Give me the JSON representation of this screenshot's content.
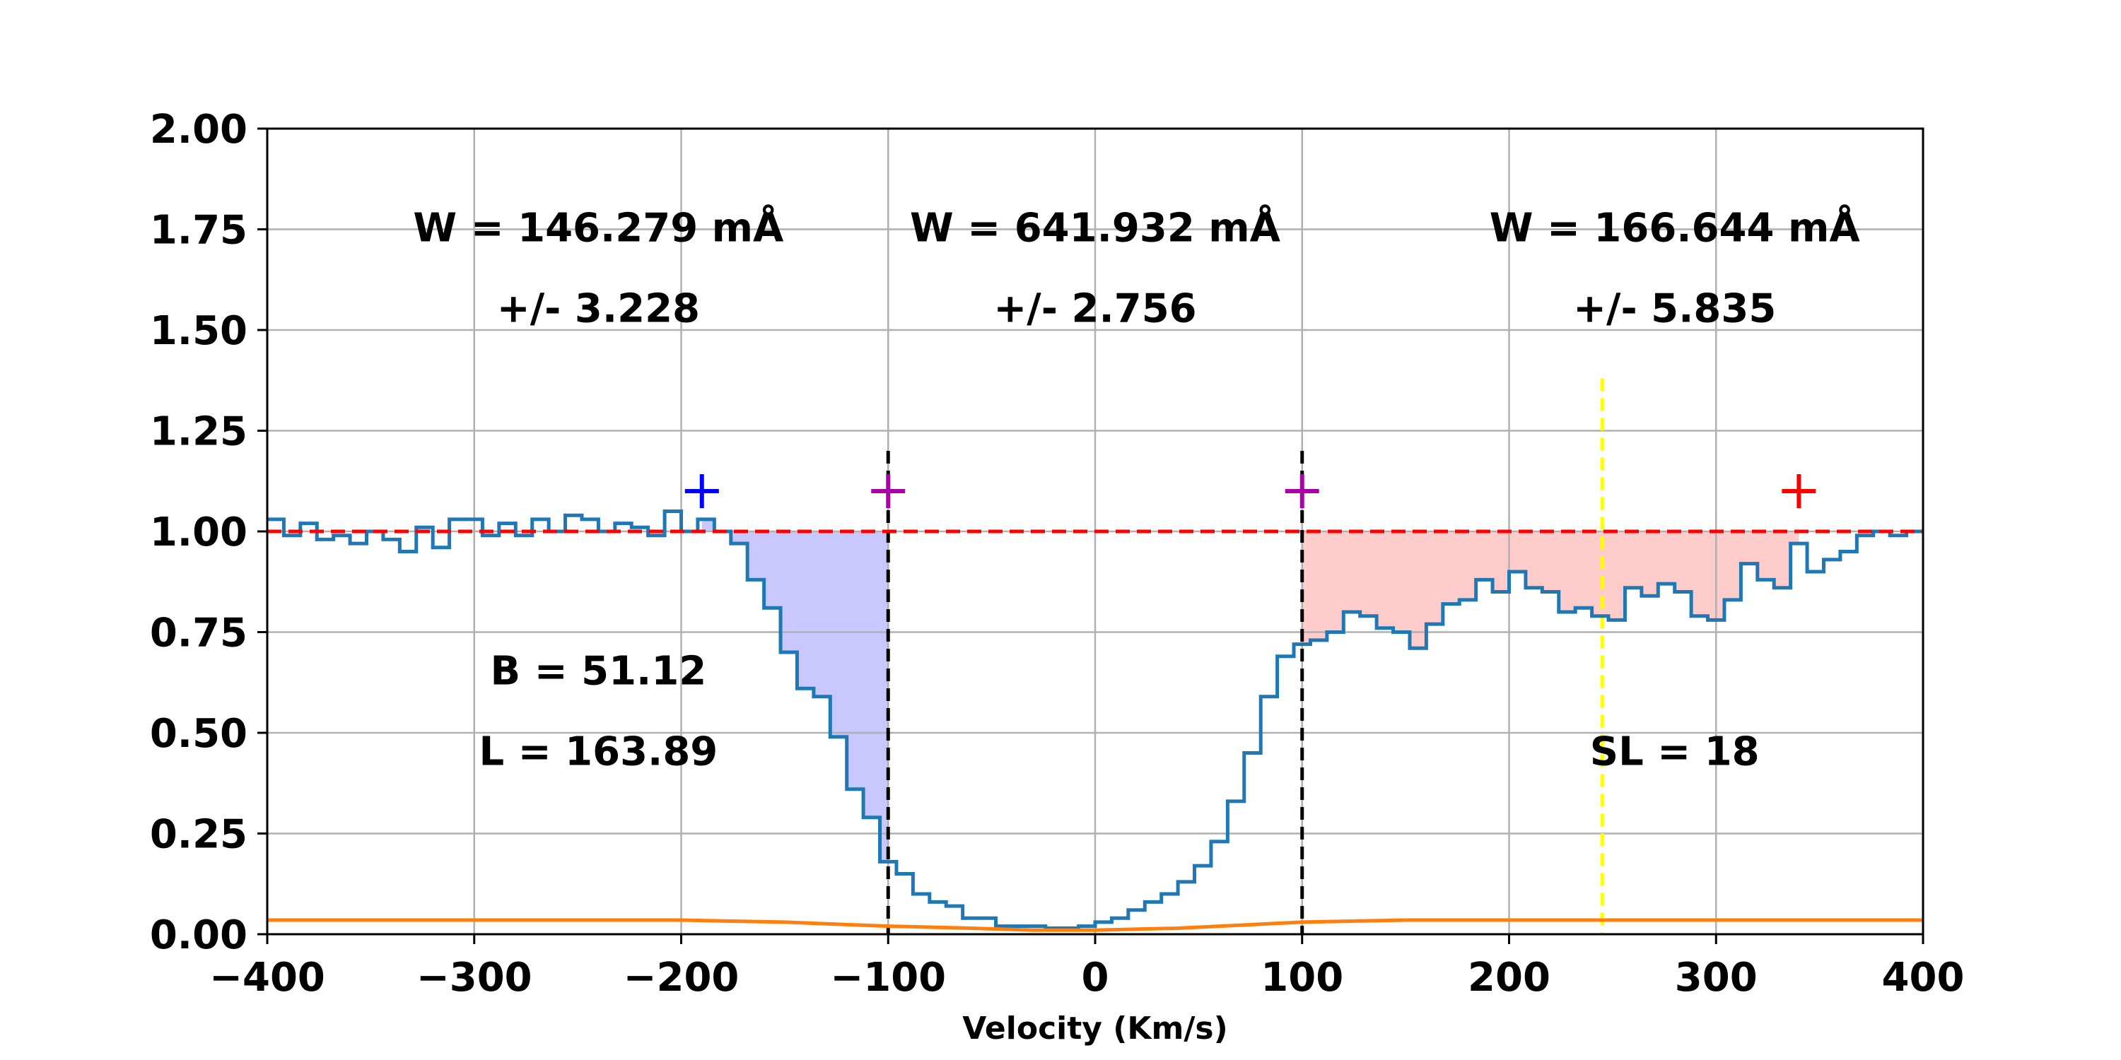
{
  "chart_data": {
    "type": "line",
    "xlabel": "Velocity (Km/s)",
    "ylabel": "",
    "xlim": [
      -400,
      400
    ],
    "ylim": [
      0,
      2
    ],
    "x_ticks": [
      -400,
      -300,
      -200,
      -100,
      0,
      100,
      200,
      300,
      400
    ],
    "x_tick_labels": [
      "−400",
      "−300",
      "−200",
      "−100",
      "0",
      "100",
      "200",
      "300",
      "400"
    ],
    "y_ticks": [
      0,
      0.25,
      0.5,
      0.75,
      1.0,
      1.25,
      1.5,
      1.75,
      2.0
    ],
    "y_tick_labels": [
      "0.00",
      "0.25",
      "0.50",
      "0.75",
      "1.00",
      "1.25",
      "1.50",
      "1.75",
      "2.00"
    ],
    "grid": true,
    "continuum_level": 1.0,
    "series": [
      {
        "style": "step",
        "color": "#1f77b4",
        "x": [
          -400,
          -392,
          -384,
          -376,
          -368,
          -360,
          -352,
          -344,
          -336,
          -328,
          -320,
          -312,
          -304,
          -296,
          -288,
          -280,
          -272,
          -264,
          -256,
          -248,
          -240,
          -232,
          -224,
          -216,
          -208,
          -200,
          -192,
          -184,
          -176,
          -168,
          -160,
          -152,
          -144,
          -136,
          -128,
          -120,
          -112,
          -104,
          -96,
          -88,
          -80,
          -72,
          -64,
          -56,
          -48,
          -40,
          -32,
          -24,
          -16,
          -8,
          0,
          8,
          16,
          24,
          32,
          40,
          48,
          56,
          64,
          72,
          80,
          88,
          96,
          104,
          112,
          120,
          128,
          136,
          144,
          152,
          160,
          168,
          176,
          184,
          192,
          200,
          208,
          216,
          224,
          232,
          240,
          248,
          256,
          264,
          272,
          280,
          288,
          296,
          304,
          312,
          320,
          328,
          336,
          344,
          352,
          360,
          368,
          376,
          384,
          392
        ],
        "y": [
          1.03,
          0.99,
          1.02,
          0.98,
          0.99,
          0.97,
          1.0,
          0.98,
          0.95,
          1.01,
          0.96,
          1.03,
          1.03,
          0.99,
          1.02,
          0.99,
          1.03,
          1.0,
          1.04,
          1.03,
          1.0,
          1.02,
          1.01,
          0.99,
          1.05,
          1.0,
          1.03,
          1.0,
          0.97,
          0.88,
          0.81,
          0.7,
          0.61,
          0.59,
          0.49,
          0.36,
          0.29,
          0.18,
          0.15,
          0.1,
          0.08,
          0.07,
          0.04,
          0.04,
          0.02,
          0.02,
          0.02,
          0.015,
          0.015,
          0.02,
          0.03,
          0.04,
          0.06,
          0.08,
          0.1,
          0.13,
          0.17,
          0.23,
          0.33,
          0.45,
          0.59,
          0.69,
          0.72,
          0.73,
          0.75,
          0.8,
          0.79,
          0.76,
          0.75,
          0.71,
          0.77,
          0.82,
          0.83,
          0.88,
          0.85,
          0.9,
          0.86,
          0.85,
          0.8,
          0.81,
          0.79,
          0.78,
          0.86,
          0.84,
          0.87,
          0.85,
          0.79,
          0.78,
          0.83,
          0.92,
          0.88,
          0.86,
          0.97,
          0.9,
          0.93,
          0.95,
          0.99,
          1.0,
          0.99,
          1.0
        ]
      },
      {
        "style": "line",
        "color": "#ff7f0e",
        "x": [
          -400,
          -300,
          -200,
          -150,
          -100,
          -60,
          -30,
          0,
          40,
          80,
          100,
          150,
          200,
          300,
          400
        ],
        "y": [
          0.035,
          0.035,
          0.035,
          0.03,
          0.02,
          0.015,
          0.01,
          0.01,
          0.015,
          0.025,
          0.03,
          0.035,
          0.035,
          0.035,
          0.035
        ]
      }
    ],
    "vertical_lines": [
      {
        "x": -100,
        "color": "#000000",
        "style": "dashed",
        "ymax": 1.2
      },
      {
        "x": 100,
        "color": "#000000",
        "style": "dashed",
        "ymax": 1.2
      },
      {
        "x": 245,
        "color": "#ffff00",
        "style": "dashed",
        "ymax": 1.38
      }
    ],
    "markers": [
      {
        "x": -190,
        "y": 1.1,
        "color": "#0000ff",
        "symbol": "+"
      },
      {
        "x": -100,
        "y": 1.1,
        "color": "#aa00aa",
        "symbol": "+"
      },
      {
        "x": 100,
        "y": 1.1,
        "color": "#aa00aa",
        "symbol": "+"
      },
      {
        "x": 340,
        "y": 1.1,
        "color": "#ff0000",
        "symbol": "+"
      }
    ],
    "shaded_regions": [
      {
        "x_from": -190,
        "x_to": -100,
        "color": "#c8c8ff"
      },
      {
        "x_from": 100,
        "x_to": 340,
        "color": "#ffcccc"
      }
    ],
    "annotations": [
      {
        "text": "W = 146.279 mÅ",
        "x": -240,
        "y": 1.72
      },
      {
        "text": "+/- 3.228",
        "x": -240,
        "y": 1.52
      },
      {
        "text": "W = 641.932 mÅ",
        "x": 0,
        "y": 1.72
      },
      {
        "text": "+/- 2.756",
        "x": 0,
        "y": 1.52
      },
      {
        "text": "W = 166.644 mÅ",
        "x": 280,
        "y": 1.72
      },
      {
        "text": "+/- 5.835",
        "x": 280,
        "y": 1.52
      },
      {
        "text": "B = 51.12",
        "x": -240,
        "y": 0.62
      },
      {
        "text": "L = 163.89",
        "x": -240,
        "y": 0.42
      },
      {
        "text": "SL = 18",
        "x": 280,
        "y": 0.42
      }
    ]
  }
}
